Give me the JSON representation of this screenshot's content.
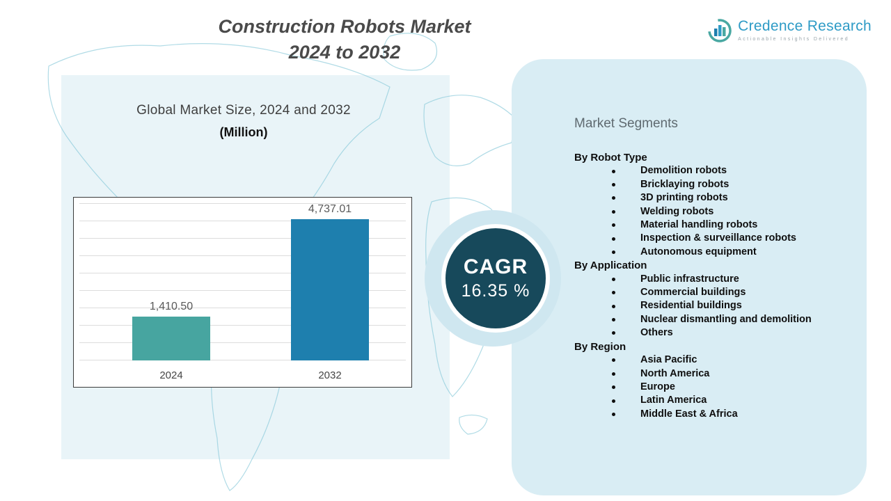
{
  "header": {
    "title_line1": "Construction Robots Market",
    "title_line2": "2024 to 2032"
  },
  "logo": {
    "name": "Credence Research",
    "tagline": "Actionable Insights Delivered",
    "brand_color": "#2e9bc6"
  },
  "chart": {
    "heading_line1": "Global Market Size, 2024 and 2032",
    "heading_line2": "(Million)"
  },
  "chart_data": {
    "type": "bar",
    "categories": [
      "2024",
      "2032"
    ],
    "values": [
      1410.5,
      4737.01
    ],
    "value_labels": [
      "1,410.50",
      "4,737.01"
    ],
    "series_colors": [
      "#47a5a0",
      "#1e7fae"
    ],
    "title": "Global Market Size, 2024 and 2032 (Million)",
    "xlabel": "",
    "ylabel": "",
    "ylim": [
      0,
      5000
    ],
    "grid": "horizontal",
    "legend": "none"
  },
  "cagr": {
    "label": "CAGR",
    "value": "16.35 %"
  },
  "segments": {
    "title": "Market Segments",
    "groups": [
      {
        "heading": "By Robot Type",
        "items": [
          "Demolition robots",
          "Bricklaying robots",
          "3D printing robots",
          "Welding robots",
          "Material handling robots",
          "Inspection & surveillance robots",
          "Autonomous equipment"
        ]
      },
      {
        "heading": "By Application",
        "items": [
          "Public infrastructure",
          "Commercial buildings",
          "Residential buildings",
          "Nuclear dismantling and demolition",
          "Others"
        ]
      },
      {
        "heading": "By Region",
        "items": [
          "Asia Pacific",
          "North America",
          "Europe",
          "Latin America",
          "Middle East & Africa"
        ]
      }
    ]
  }
}
